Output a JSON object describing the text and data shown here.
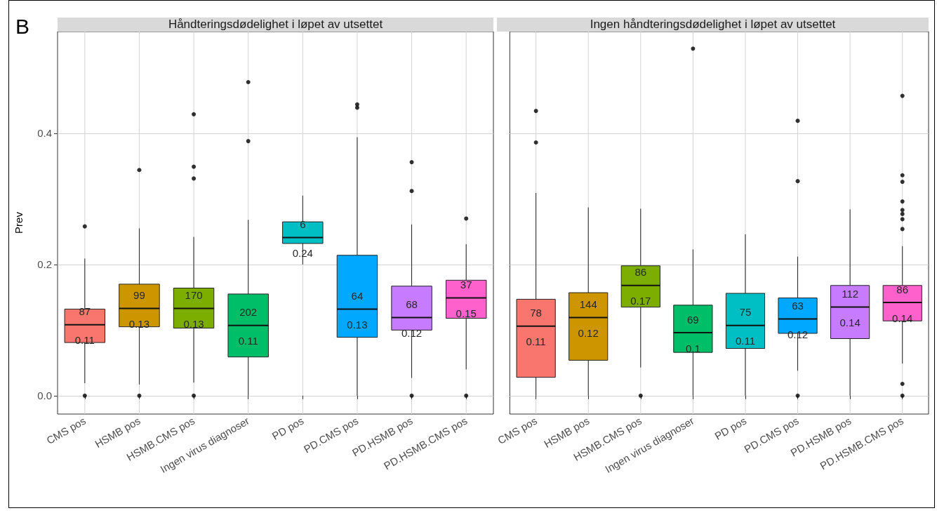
{
  "chart_data": [
    {
      "type": "box",
      "title": "Håndteringsdødelighet i løpet av utsettet",
      "ylabel": "Prev",
      "categories": [
        "CMS pos",
        "HSMB pos",
        "HSMB.CMS pos",
        "Ingen virus diagnoser",
        "PD pos",
        "PD.CMS pos",
        "PD.HSMB pos",
        "PD.HSMB.CMS pos"
      ],
      "colors": [
        "#f8766d",
        "#cd9600",
        "#7cae00",
        "#00be67",
        "#00bfc4",
        "#00a9ff",
        "#c77cff",
        "#ff61cc"
      ],
      "boxes": [
        {
          "low": 0.019,
          "q1": 0.081,
          "median": 0.108,
          "q3": 0.132,
          "high": 0.209,
          "outliers": [
            0.258,
            0
          ]
        },
        {
          "low": 0.017,
          "q1": 0.105,
          "median": 0.133,
          "q3": 0.17,
          "high": 0.255,
          "outliers": [
            0.344,
            0
          ]
        },
        {
          "low": 0.02,
          "q1": 0.103,
          "median": 0.133,
          "q3": 0.164,
          "high": 0.242,
          "outliers": [
            0.429,
            0.349,
            0.331,
            0
          ]
        },
        {
          "low": 0,
          "q1": 0.059,
          "median": 0.107,
          "q3": 0.155,
          "high": 0.268,
          "outliers": [
            0.478,
            0.388
          ]
        },
        {
          "low": 0.2,
          "q1": 0.232,
          "median": 0.241,
          "q3": 0.265,
          "high": 0.305
        },
        {
          "low": 0,
          "q1": 0.089,
          "median": 0.132,
          "q3": 0.214,
          "high": 0.394,
          "outliers": [
            0.444,
            0.439
          ]
        },
        {
          "low": 0.027,
          "q1": 0.1,
          "median": 0.119,
          "q3": 0.167,
          "high": 0.261,
          "outliers": [
            0.356,
            0.312,
            0
          ]
        },
        {
          "low": 0.04,
          "q1": 0.118,
          "median": 0.149,
          "q3": 0.176,
          "high": 0.231,
          "outliers": [
            0.27,
            0
          ]
        }
      ],
      "ylim": [
        -0.028,
        0.555
      ],
      "yticks": [
        {
          "value": 0,
          "label": "0.0"
        },
        {
          "value": 0.2,
          "label": "0.2"
        },
        {
          "value": 0.4,
          "label": "0.4"
        }
      ],
      "grid": true,
      "annotations": [
        "B",
        "87",
        "0.11",
        "99",
        "0.13",
        "170",
        "0.13",
        "202",
        "0.11",
        "6",
        "0.24",
        "64",
        "0.13",
        "68",
        "0.12",
        "37",
        "0.15"
      ]
    },
    {
      "type": "box",
      "title": "Ingen håndteringsdødelighet i løpet av utsettet",
      "categories": [
        "CMS pos",
        "HSMB pos",
        "HSMB.CMS pos",
        "Ingen virus diagnoser",
        "PD pos",
        "PD.CMS pos",
        "PD.HSMB pos",
        "PD.HSMB.CMS pos"
      ],
      "colors": [
        "#f8766d",
        "#cd9600",
        "#7cae00",
        "#00be67",
        "#00bfc4",
        "#00a9ff",
        "#c77cff",
        "#ff61cc"
      ],
      "boxes": [
        {
          "low": 0,
          "q1": 0.028,
          "median": 0.106,
          "q3": 0.147,
          "high": 0.309,
          "outliers": [
            0.434,
            0.386
          ]
        },
        {
          "low": 0,
          "q1": 0.054,
          "median": 0.119,
          "q3": 0.157,
          "high": 0.287
        },
        {
          "low": 0.043,
          "q1": 0.135,
          "median": 0.168,
          "q3": 0.198,
          "high": 0.285,
          "outliers": [
            0
          ]
        },
        {
          "low": 0,
          "q1": 0.066,
          "median": 0.096,
          "q3": 0.138,
          "high": 0.223,
          "outliers": [
            0.529
          ]
        },
        {
          "low": 0,
          "q1": 0.072,
          "median": 0.107,
          "q3": 0.156,
          "high": 0.246
        },
        {
          "low": 0.038,
          "q1": 0.095,
          "median": 0.117,
          "q3": 0.149,
          "high": 0.212,
          "outliers": [
            0.419,
            0.327,
            0
          ]
        },
        {
          "low": 0,
          "q1": 0.087,
          "median": 0.135,
          "q3": 0.168,
          "high": 0.284
        },
        {
          "low": 0.049,
          "q1": 0.114,
          "median": 0.142,
          "q3": 0.168,
          "high": 0.228,
          "outliers": [
            0.457,
            0.336,
            0.326,
            0.296,
            0.283,
            0.277,
            0.269,
            0.254,
            0.018,
            0
          ]
        }
      ],
      "ylim": [
        -0.028,
        0.555
      ],
      "yticks": [
        0,
        0.2,
        0.4
      ],
      "grid": true,
      "tick_labels": "x",
      "annotations": [
        "78",
        "0.11",
        "144",
        "0.12",
        "86",
        "0.17",
        "69",
        "0.1",
        "75",
        "0.11",
        "63",
        "0.12",
        "112",
        "0.14",
        "86",
        "0.14"
      ]
    }
  ]
}
